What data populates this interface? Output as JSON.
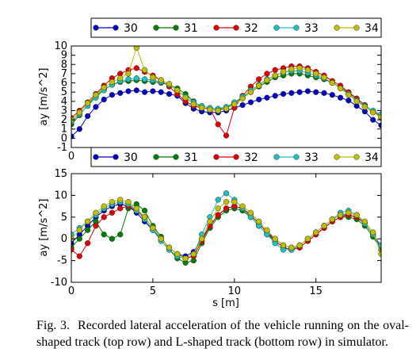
{
  "caption": {
    "label": "Fig. 3.",
    "text": "Recorded lateral acceleration of the vehicle running on the oval-shaped track (top row) and L-shaped track (bottom row) in simulator."
  },
  "colors": {
    "30": "#0000bf",
    "31": "#007f00",
    "32": "#e00000",
    "33": "#20c0c0",
    "34": "#bfbf00"
  },
  "chart_data": [
    {
      "type": "line",
      "title": "",
      "xlabel": "",
      "ylabel": "ay [m/s^2]",
      "xlim": [
        0,
        19
      ],
      "ylim": [
        -1,
        10
      ],
      "xticks": [
        "0"
      ],
      "yticks": [
        "-1",
        "0",
        "1",
        "2",
        "3",
        "4",
        "5",
        "6",
        "7",
        "8",
        "9",
        "10"
      ],
      "ytick_values": [
        -1,
        0,
        1,
        2,
        3,
        4,
        5,
        6,
        7,
        8,
        9,
        10
      ],
      "grid": false,
      "legend": "top",
      "markers": "circle",
      "series": [
        {
          "name": "30",
          "color": "#0000bf",
          "x": [
            0,
            0.5,
            1,
            1.5,
            2,
            2.5,
            3,
            3.5,
            4,
            4.5,
            5,
            5.5,
            6,
            6.5,
            7,
            7.5,
            8,
            8.5,
            9,
            9.5,
            10,
            10.5,
            11,
            11.5,
            12,
            12.5,
            13,
            13.5,
            14,
            14.5,
            15,
            15.5,
            16,
            16.5,
            17,
            17.5,
            18,
            18.5,
            19
          ],
          "y": [
            0.2,
            1,
            2.4,
            3.4,
            4.2,
            4.7,
            4.9,
            5.1,
            5.2,
            5.0,
            5.1,
            5.0,
            4.8,
            4.6,
            3.8,
            3.2,
            2.9,
            2.8,
            2.8,
            3.0,
            3.3,
            3.6,
            3.9,
            4.2,
            4.4,
            4.6,
            4.8,
            4.9,
            5.0,
            5.1,
            5.0,
            4.9,
            4.7,
            4.4,
            4.1,
            3.5,
            2.9,
            2.0,
            1.4
          ]
        },
        {
          "name": "31",
          "color": "#007f00",
          "x": [
            0,
            0.5,
            1,
            1.5,
            2,
            2.5,
            3,
            3.5,
            4,
            4.5,
            5,
            5.5,
            6,
            6.5,
            7,
            7.5,
            8,
            8.5,
            9,
            9.5,
            10,
            10.5,
            11,
            11.5,
            12,
            12.5,
            13,
            13.5,
            14,
            14.5,
            15,
            15.5,
            16,
            16.5,
            17,
            17.5,
            18,
            18.5,
            19
          ],
          "y": [
            1.5,
            2.5,
            3.6,
            4.6,
            5.3,
            5.8,
            6.1,
            6.2,
            6.3,
            6.2,
            6.1,
            6.0,
            5.8,
            5.4,
            4.8,
            4.0,
            3.3,
            3.1,
            3.1,
            3.3,
            3.8,
            4.4,
            5.0,
            5.6,
            6.1,
            6.6,
            6.8,
            7.0,
            7.0,
            6.8,
            6.6,
            6.4,
            6.0,
            5.5,
            4.9,
            4.3,
            3.6,
            2.9,
            2.2
          ]
        },
        {
          "name": "32",
          "color": "#e00000",
          "x": [
            0,
            0.5,
            1,
            1.5,
            2,
            2.5,
            3,
            3.5,
            4,
            4.5,
            5,
            5.5,
            6,
            6.5,
            7,
            7.5,
            8,
            8.5,
            9,
            9.5,
            10,
            10.5,
            11,
            11.5,
            12,
            12.5,
            13,
            13.5,
            14,
            14.5,
            15,
            15.5,
            16,
            16.5,
            17,
            17.5,
            18,
            18.5,
            19
          ],
          "y": [
            2.2,
            3.0,
            3.9,
            4.8,
            5.7,
            6.5,
            7.0,
            7.4,
            7.6,
            7.2,
            6.8,
            6.3,
            5.6,
            4.8,
            4.0,
            3.5,
            3.3,
            3.2,
            1.5,
            0.3,
            3.3,
            4.6,
            5.6,
            6.4,
            7.0,
            7.4,
            7.6,
            7.8,
            7.8,
            7.6,
            7.2,
            6.8,
            6.2,
            5.7,
            5.0,
            4.3,
            3.6,
            2.9,
            2.4
          ]
        },
        {
          "name": "33",
          "color": "#20c0c0",
          "x": [
            0,
            0.5,
            1,
            1.5,
            2,
            2.5,
            3,
            3.5,
            4,
            4.5,
            5,
            5.5,
            6,
            6.5,
            7,
            7.5,
            8,
            8.5,
            9,
            9.5,
            10,
            10.5,
            11,
            11.5,
            12,
            12.5,
            13,
            13.5,
            14,
            14.5,
            15,
            15.5,
            16,
            16.5,
            17,
            17.5,
            18,
            18.5,
            19
          ],
          "y": [
            1.8,
            2.6,
            3.5,
            4.4,
            5.2,
            5.8,
            6.2,
            6.4,
            6.5,
            6.4,
            6.3,
            6.1,
            5.8,
            5.2,
            4.5,
            3.9,
            3.5,
            3.3,
            3.2,
            3.4,
            3.9,
            4.5,
            5.2,
            5.8,
            6.4,
            6.8,
            7.1,
            7.3,
            7.3,
            7.1,
            6.8,
            6.5,
            6.0,
            5.4,
            4.8,
            4.1,
            3.5,
            3.0,
            2.6
          ]
        },
        {
          "name": "34",
          "color": "#bfbf00",
          "x": [
            0,
            0.5,
            1,
            1.5,
            2,
            2.5,
            3,
            3.5,
            4,
            4.5,
            5,
            5.5,
            6,
            6.5,
            7,
            7.5,
            8,
            8.5,
            9,
            9.5,
            10,
            10.5,
            11,
            11.5,
            12,
            12.5,
            13,
            13.5,
            14,
            14.5,
            15,
            15.5,
            16,
            16.5,
            17,
            17.5,
            18,
            18.5,
            19
          ],
          "y": [
            2.0,
            2.8,
            3.8,
            4.7,
            5.5,
            6.1,
            6.5,
            7.0,
            9.8,
            7.4,
            6.6,
            6.3,
            5.9,
            5.2,
            4.4,
            3.7,
            3.3,
            3.1,
            3.0,
            3.2,
            3.7,
            4.3,
            5.0,
            5.7,
            6.3,
            6.8,
            7.2,
            7.5,
            7.6,
            7.4,
            7.0,
            6.6,
            6.0,
            5.4,
            4.7,
            4.0,
            3.4,
            2.8,
            2.3
          ]
        }
      ]
    },
    {
      "type": "line",
      "title": "",
      "xlabel": "s [m]",
      "ylabel": "ay [m/s^2]",
      "xlim": [
        0,
        19
      ],
      "ylim": [
        -10,
        15
      ],
      "xticks": [
        "0",
        "5",
        "10",
        "15"
      ],
      "xtick_values": [
        0,
        5,
        10,
        15
      ],
      "yticks": [
        "-10",
        "-5",
        "0",
        "5",
        "10",
        "15"
      ],
      "ytick_values": [
        -10,
        -5,
        0,
        5,
        10,
        15
      ],
      "grid": false,
      "legend": "top",
      "markers": "circle",
      "series": [
        {
          "name": "30",
          "color": "#0000bf",
          "x": [
            0,
            0.5,
            1,
            1.5,
            2,
            2.5,
            3,
            3.5,
            4,
            4.5,
            5,
            5.5,
            6,
            6.5,
            7,
            7.5,
            8,
            8.5,
            9,
            9.5,
            10,
            10.5,
            11,
            11.5,
            12,
            12.5,
            13,
            13.5,
            14,
            14.5,
            15,
            15.5,
            16,
            16.5,
            17,
            17.5,
            18,
            18.5,
            19
          ],
          "y": [
            -1,
            1,
            3,
            5,
            6.5,
            7.5,
            8,
            7.5,
            6,
            4,
            2,
            0,
            -2,
            -3.5,
            -4,
            -3,
            0,
            3,
            5.5,
            7,
            7.5,
            7,
            5.5,
            3.5,
            1.5,
            0,
            -1.5,
            -2,
            -1.5,
            0,
            1.5,
            3,
            4.5,
            5.5,
            5.5,
            5,
            3.5,
            1,
            -2
          ]
        },
        {
          "name": "31",
          "color": "#007f00",
          "x": [
            0,
            0.5,
            1,
            1.5,
            2,
            2.5,
            3,
            3.5,
            4,
            4.5,
            5,
            5.5,
            6,
            6.5,
            7,
            7.5,
            8,
            8.5,
            9,
            9.5,
            10,
            10.5,
            11,
            11.5,
            12,
            12.5,
            13,
            13.5,
            14,
            14.5,
            15,
            15.5,
            16,
            16.5,
            17,
            17.5,
            18,
            18.5,
            19
          ],
          "y": [
            -2,
            0,
            2,
            4,
            1,
            0,
            1,
            7,
            8,
            6.5,
            3,
            0.5,
            -2.5,
            -4.5,
            -5.5,
            -5,
            -1,
            2.5,
            5,
            6.5,
            7,
            6.5,
            5,
            3,
            1,
            -0.5,
            -2,
            -2.5,
            -2,
            -0.5,
            1,
            2.5,
            4,
            5,
            5,
            4.5,
            3,
            0.5,
            -2.5
          ]
        },
        {
          "name": "32",
          "color": "#e00000",
          "x": [
            0,
            0.5,
            1,
            1.5,
            2,
            2.5,
            3,
            3.5,
            4,
            4.5,
            5,
            5.5,
            6,
            6.5,
            7,
            7.5,
            8,
            8.5,
            9,
            9.5,
            10,
            10.5,
            11,
            11.5,
            12,
            12.5,
            13,
            13.5,
            14,
            14.5,
            15,
            15.5,
            16,
            16.5,
            17,
            17.5,
            18,
            18.5,
            19
          ],
          "y": [
            -2.5,
            -4,
            -1,
            3,
            5,
            6,
            7,
            7.5,
            6.5,
            5,
            2.5,
            0,
            -2,
            -3.5,
            -4.5,
            -4,
            -0.5,
            3,
            5.5,
            7,
            7.5,
            7,
            5.5,
            3.5,
            1.5,
            -0.5,
            -2,
            -2.5,
            -2,
            -0.5,
            1,
            2.5,
            4,
            5,
            5.5,
            5,
            3.5,
            1,
            -1.5
          ]
        },
        {
          "name": "33",
          "color": "#20c0c0",
          "x": [
            0,
            0.5,
            1,
            1.5,
            2,
            2.5,
            3,
            3.5,
            4,
            4.5,
            5,
            5.5,
            6,
            6.5,
            7,
            7.5,
            8,
            8.5,
            9,
            9.5,
            10,
            10.5,
            11,
            11.5,
            12,
            12.5,
            13,
            13.5,
            14,
            14.5,
            15,
            15.5,
            16,
            16.5,
            17,
            17.5,
            18,
            18.5,
            19
          ],
          "y": [
            1,
            2.5,
            4,
            5.5,
            7,
            8,
            8.5,
            8,
            6.5,
            4.5,
            2,
            -0.5,
            -2.5,
            -4,
            -4.5,
            -3.5,
            1,
            5,
            9,
            10.5,
            9,
            7,
            5,
            3,
            1,
            -1,
            -2.5,
            -2.5,
            -1.5,
            0,
            1.5,
            3,
            4.5,
            6,
            6.5,
            5.5,
            3.5,
            1,
            -1.5
          ]
        },
        {
          "name": "34",
          "color": "#bfbf00",
          "x": [
            0,
            0.5,
            1,
            1.5,
            2,
            2.5,
            3,
            3.5,
            4,
            4.5,
            5,
            5.5,
            6,
            6.5,
            7,
            7.5,
            8,
            8.5,
            9,
            9.5,
            10,
            10.5,
            11,
            11.5,
            12,
            12.5,
            13,
            13.5,
            14,
            14.5,
            15,
            15.5,
            16,
            16.5,
            17,
            17.5,
            18,
            18.5,
            19
          ],
          "y": [
            0,
            2,
            4,
            6,
            7.5,
            8.5,
            9,
            8.5,
            7,
            5,
            2.5,
            0,
            -2,
            -3.5,
            -4.5,
            -3.5,
            0,
            4,
            7,
            8.5,
            8.5,
            7.5,
            6,
            4,
            2,
            0,
            -1.5,
            -2,
            -1.5,
            0,
            1.5,
            3,
            4.5,
            5.5,
            6,
            5.5,
            4,
            1.5,
            -3.5
          ]
        }
      ]
    }
  ]
}
